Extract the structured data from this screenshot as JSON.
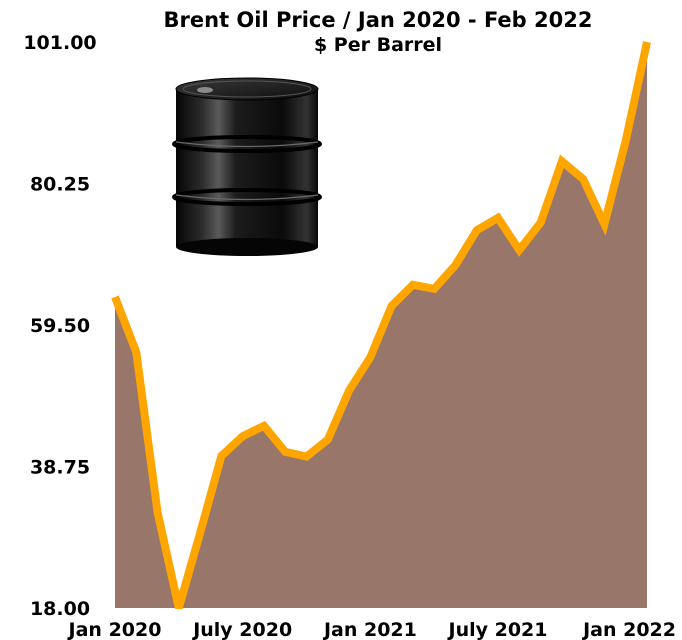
{
  "chart_data": {
    "type": "area",
    "title": "Brent Oil Price / Jan 2020 - Feb 2022",
    "subtitle": "$ Per Barrel",
    "xlabel": "",
    "ylabel": "",
    "ylim": [
      18.0,
      101.0
    ],
    "y_ticks": [
      "101.00",
      "80.25",
      "59.50",
      "38.75",
      "18.00"
    ],
    "y_tick_values": [
      101.0,
      80.25,
      59.5,
      38.75,
      18.0
    ],
    "x_tick_labels": [
      "Jan 2020",
      "July 2020",
      "Jan 2021",
      "July 2021",
      "Jan 2022"
    ],
    "x_tick_index": [
      0,
      6,
      12,
      18,
      24
    ],
    "x": [
      "Jan 2020",
      "Feb 2020",
      "Mar 2020",
      "Apr 2020",
      "May 2020",
      "Jun 2020",
      "Jul 2020",
      "Aug 2020",
      "Sep 2020",
      "Oct 2020",
      "Nov 2020",
      "Dec 2020",
      "Jan 2021",
      "Feb 2021",
      "Mar 2021",
      "Apr 2021",
      "May 2021",
      "Jun 2021",
      "Jul 2021",
      "Aug 2021",
      "Sep 2021",
      "Oct 2021",
      "Nov 2021",
      "Dec 2021",
      "Jan 2022",
      "Feb 2022"
    ],
    "series": [
      {
        "values": [
          63.6,
          55.5,
          32.0,
          18.0,
          29.0,
          40.3,
          43.2,
          44.7,
          40.9,
          40.2,
          42.7,
          49.9,
          54.8,
          62.3,
          65.4,
          64.8,
          68.3,
          73.4,
          75.2,
          70.5,
          74.5,
          83.5,
          80.9,
          74.3,
          86.5,
          101.0
        ],
        "line_color": "#ffa500",
        "fill_color": "#98766a"
      }
    ],
    "grid": false,
    "legend": "none"
  },
  "icons": {
    "oil_barrel": "oil-barrel-icon"
  }
}
